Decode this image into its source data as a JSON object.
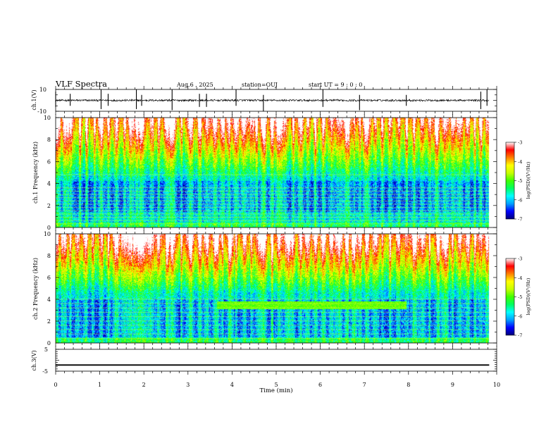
{
  "header": {
    "title": "VLF Spectra",
    "date": "Aug.6 , 2025",
    "station": "station=OUJ",
    "start": "start UT = 9 : 0 : 0"
  },
  "chart_data": [
    {
      "type": "line",
      "panel": "ch1-waveform",
      "ylabel": "ch.1(V)",
      "ylim": [
        -10,
        10
      ],
      "yticks": [
        "10",
        "-10"
      ],
      "baseline": 0,
      "bursts": [
        {
          "t": 0.0,
          "lo": -6,
          "hi": 8
        },
        {
          "t": 0.33,
          "lo": -5,
          "hi": 6
        },
        {
          "t": 1.03,
          "lo": -8,
          "hi": 10
        },
        {
          "t": 1.19,
          "lo": -5,
          "hi": 6
        },
        {
          "t": 1.83,
          "lo": -8,
          "hi": 10
        },
        {
          "t": 1.95,
          "lo": -5,
          "hi": 5
        },
        {
          "t": 2.64,
          "lo": -9,
          "hi": 10
        },
        {
          "t": 3.26,
          "lo": -6,
          "hi": 6
        },
        {
          "t": 3.42,
          "lo": -6,
          "hi": 6
        },
        {
          "t": 4.09,
          "lo": -5,
          "hi": 10
        },
        {
          "t": 4.71,
          "lo": -10,
          "hi": 5
        },
        {
          "t": 6.06,
          "lo": -6,
          "hi": 10
        },
        {
          "t": 6.89,
          "lo": -9,
          "hi": 5
        },
        {
          "t": 7.95,
          "lo": -5,
          "hi": 5
        },
        {
          "t": 9.64,
          "lo": -8,
          "hi": 8
        },
        {
          "t": 9.78,
          "lo": -5,
          "hi": 10
        }
      ]
    },
    {
      "type": "heatmap",
      "panel": "ch1-spectrogram",
      "ylabel": "ch.1 Frequency (kHz)",
      "ylim": [
        0,
        10
      ],
      "xlim": [
        0,
        10
      ],
      "yticks": [
        "0",
        "2",
        "4",
        "6",
        "8",
        "10"
      ],
      "colorbar": {
        "label": "log(PSD)(V²/Hz)",
        "range": [
          -7,
          -3
        ],
        "ticks": [
          "-3",
          "-4",
          "-5",
          "-6",
          "-7"
        ]
      },
      "hum_lines_khz": [
        0.3,
        0.6,
        0.9,
        1.2,
        1.5,
        1.8,
        2.1,
        2.4,
        2.7,
        3.0,
        3.3,
        3.6,
        4.8
      ],
      "dark_band_khz": [
        1.4,
        4.2
      ],
      "sferics_min": [
        0.02,
        0.21,
        0.33,
        0.55,
        0.7,
        0.88,
        1.03,
        1.19,
        1.37,
        1.55,
        1.69,
        1.83,
        1.95,
        2.18,
        2.33,
        2.52,
        2.64,
        2.85,
        3.05,
        3.26,
        3.42,
        3.6,
        3.78,
        3.92,
        4.09,
        4.27,
        4.44,
        4.55,
        4.71,
        4.9,
        5.06,
        5.2,
        5.38,
        5.55,
        5.71,
        5.88,
        6.06,
        6.25,
        6.42,
        6.6,
        6.76,
        6.89,
        7.05,
        7.24,
        7.4,
        7.58,
        7.77,
        7.95,
        8.12,
        8.3,
        8.47,
        8.63,
        8.82,
        8.99,
        9.16,
        9.34,
        9.5,
        9.64,
        9.78
      ]
    },
    {
      "type": "heatmap",
      "panel": "ch2-spectrogram",
      "ylabel": "ch.2 Frequency (kHz)",
      "ylim": [
        0,
        10
      ],
      "xlim": [
        0,
        10
      ],
      "yticks": [
        "0",
        "2",
        "4",
        "6",
        "8",
        "10"
      ],
      "colorbar": {
        "label": "log(PSD)(V²/Hz)",
        "range": [
          -7,
          -3
        ],
        "ticks": [
          "-3",
          "-4",
          "-5",
          "-6",
          "-7"
        ]
      },
      "hum_lines_khz": [
        0.4,
        0.8,
        1.2,
        1.6,
        2.0,
        2.4,
        2.8,
        3.2,
        3.6,
        4.0
      ],
      "dark_band_khz": [
        0.5,
        4.0
      ],
      "signal_band": {
        "t_start": 3.65,
        "t_end": 7.95,
        "f_low": 3.1,
        "f_high": 3.8
      },
      "sferics_min": [
        0.02,
        0.18,
        0.33,
        0.48,
        0.66,
        0.84,
        1.03,
        1.19,
        1.37,
        1.55,
        1.69,
        1.83,
        1.95,
        2.15,
        2.33,
        2.52,
        2.64,
        2.85,
        3.05,
        3.26,
        3.42,
        3.63,
        3.78,
        3.95,
        4.09,
        4.27,
        4.44,
        4.6,
        4.71,
        4.9,
        5.06,
        5.25,
        5.38,
        5.55,
        5.71,
        5.88,
        6.06,
        6.25,
        6.42,
        6.6,
        6.76,
        6.89,
        7.05,
        7.24,
        7.4,
        7.58,
        7.77,
        7.95,
        8.12,
        8.3,
        8.47,
        8.66,
        8.82,
        8.99,
        9.16,
        9.34,
        9.5,
        9.64,
        9.78
      ]
    },
    {
      "type": "line",
      "panel": "ch3-waveform",
      "ylabel": "ch.3(V)",
      "ylim": [
        -5,
        5
      ],
      "yticks": [
        "5",
        "0",
        "-5"
      ],
      "constant_value": -2.2
    }
  ],
  "x_axis": {
    "label": "Time (min)",
    "range": [
      0,
      10
    ],
    "ticks": [
      "0",
      "1",
      "2",
      "3",
      "4",
      "5",
      "6",
      "7",
      "8",
      "9",
      "10"
    ],
    "data_end": 9.83
  },
  "colors": {
    "colormap": [
      "#00007a",
      "#0000ff",
      "#00a0ff",
      "#00ffff",
      "#00ff60",
      "#40ff00",
      "#c8ff00",
      "#ffff00",
      "#ff8000",
      "#ff0000",
      "#ffffff"
    ],
    "frame": "#000000",
    "hum": "#c8ff40"
  }
}
